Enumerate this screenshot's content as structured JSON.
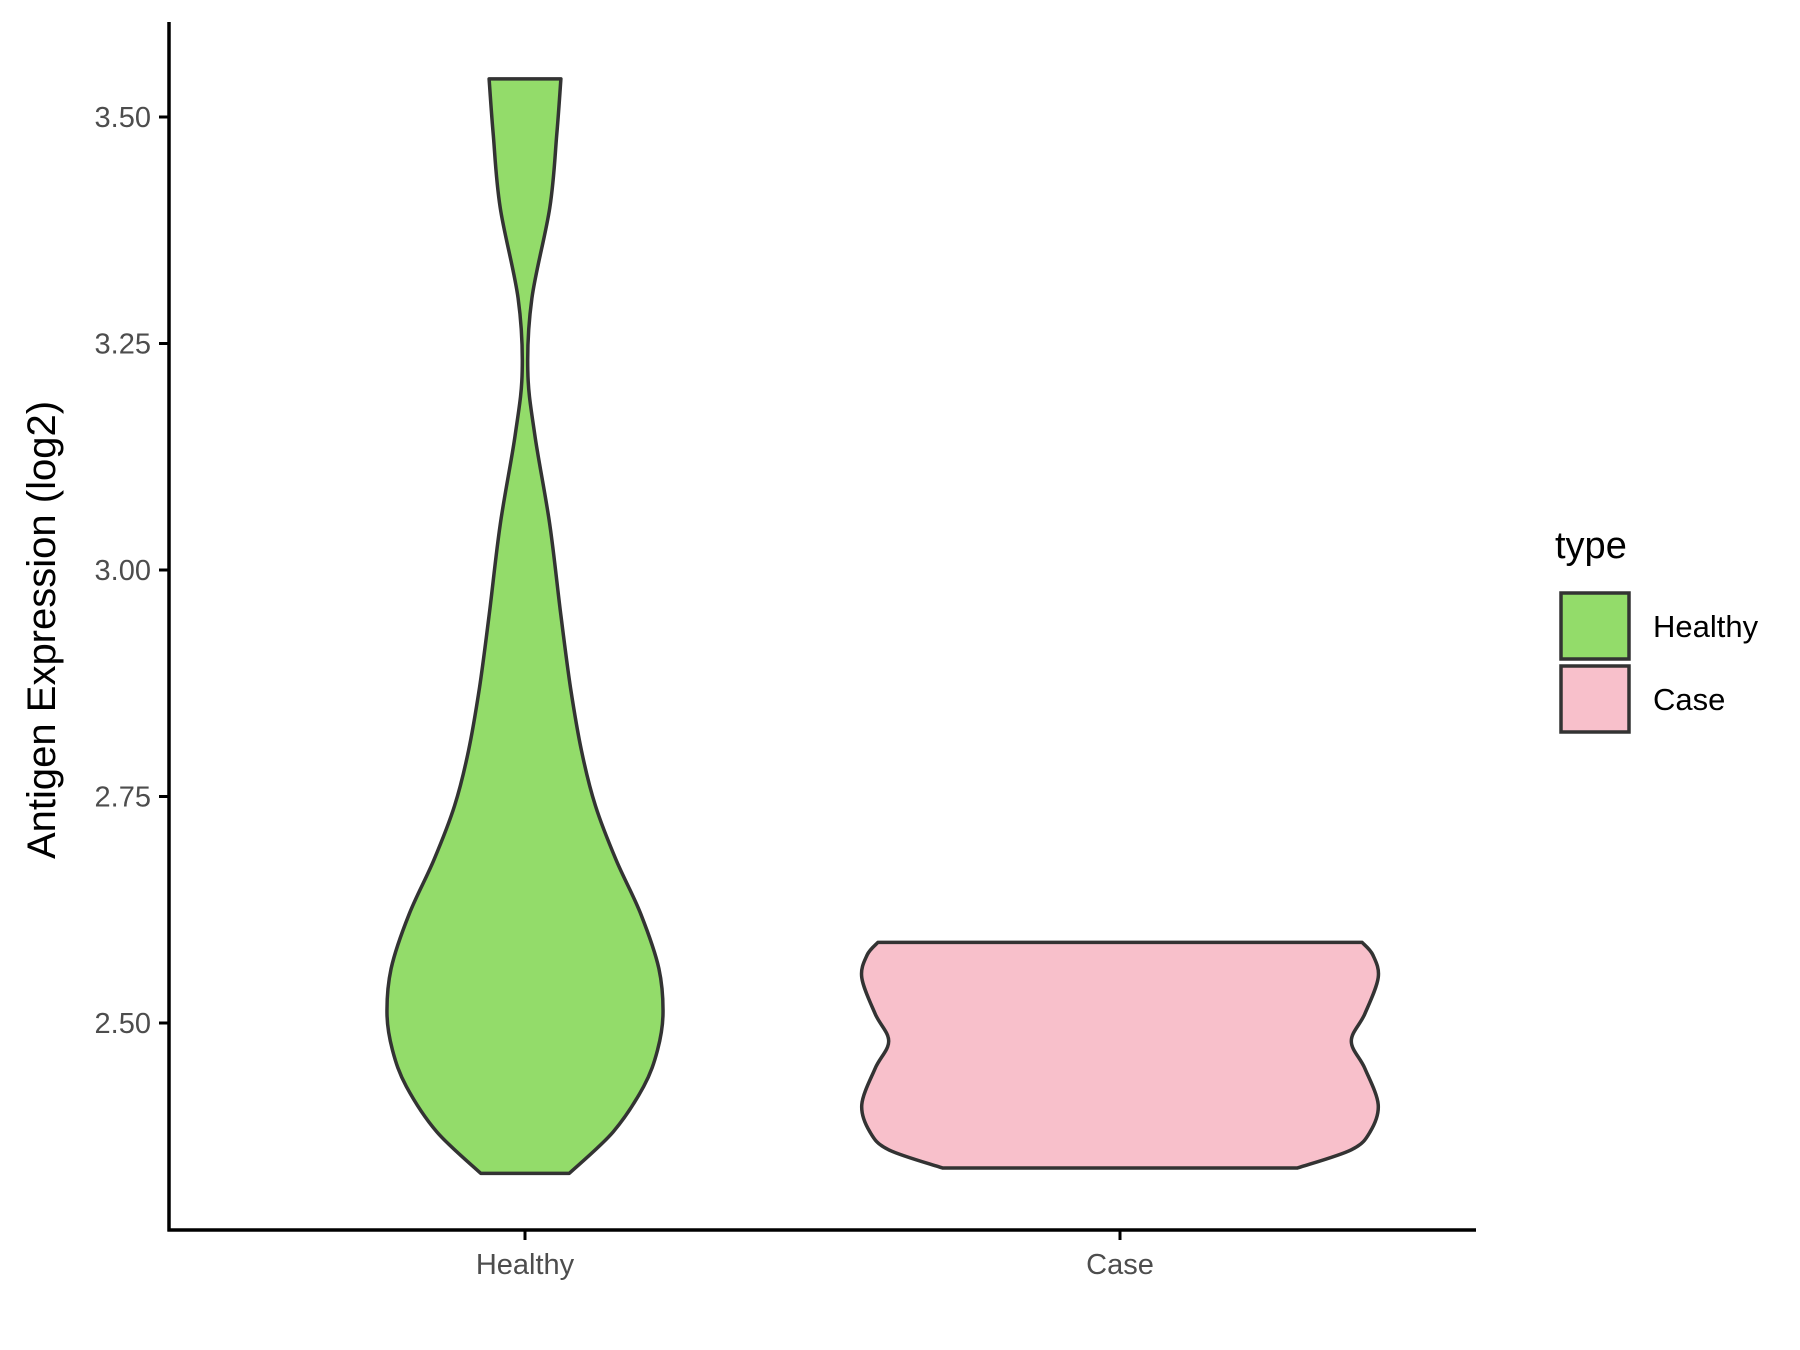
{
  "colors": {
    "healthy": "#93DC6A",
    "case": "#F8C0CB",
    "outline": "#333333",
    "axis": "#000000",
    "tick_text": "#4d4d4d"
  },
  "chart_data": {
    "type": "violin",
    "title": "",
    "xlabel": "",
    "ylabel": "Antigen Expression (log2)",
    "ylim": [
      2.275,
      3.6
    ],
    "yticks": [
      2.5,
      2.75,
      3.0,
      3.25,
      3.5
    ],
    "ytick_labels": [
      "2.50",
      "2.75",
      "3.00",
      "3.25",
      "3.50"
    ],
    "categories": [
      "Healthy",
      "Case"
    ],
    "grid": false,
    "legend": {
      "title": "type",
      "position": "right",
      "entries": [
        "Healthy",
        "Case"
      ]
    },
    "series": [
      {
        "name": "Healthy",
        "color": "#93DC6A",
        "min": 2.334,
        "max": 3.542,
        "density_profile": [
          [
            2.334,
            0.32
          ],
          [
            2.38,
            0.64
          ],
          [
            2.43,
            0.86
          ],
          [
            2.47,
            0.96
          ],
          [
            2.51,
            1.0
          ],
          [
            2.56,
            0.97
          ],
          [
            2.62,
            0.84
          ],
          [
            2.68,
            0.66
          ],
          [
            2.74,
            0.51
          ],
          [
            2.8,
            0.41
          ],
          [
            2.87,
            0.33
          ],
          [
            2.95,
            0.26
          ],
          [
            3.05,
            0.18
          ],
          [
            3.15,
            0.07
          ],
          [
            3.22,
            0.02
          ],
          [
            3.3,
            0.05
          ],
          [
            3.4,
            0.18
          ],
          [
            3.48,
            0.23
          ],
          [
            3.542,
            0.26
          ]
        ]
      },
      {
        "name": "Case",
        "color": "#F8C0CB",
        "min": 2.34,
        "max": 2.589,
        "density_profile": [
          [
            2.34,
            0.66
          ],
          [
            2.36,
            0.86
          ],
          [
            2.38,
            0.93
          ],
          [
            2.41,
            0.96
          ],
          [
            2.45,
            0.91
          ],
          [
            2.48,
            0.86
          ],
          [
            2.51,
            0.91
          ],
          [
            2.55,
            0.96
          ],
          [
            2.575,
            0.94
          ],
          [
            2.589,
            0.9
          ]
        ]
      }
    ]
  }
}
